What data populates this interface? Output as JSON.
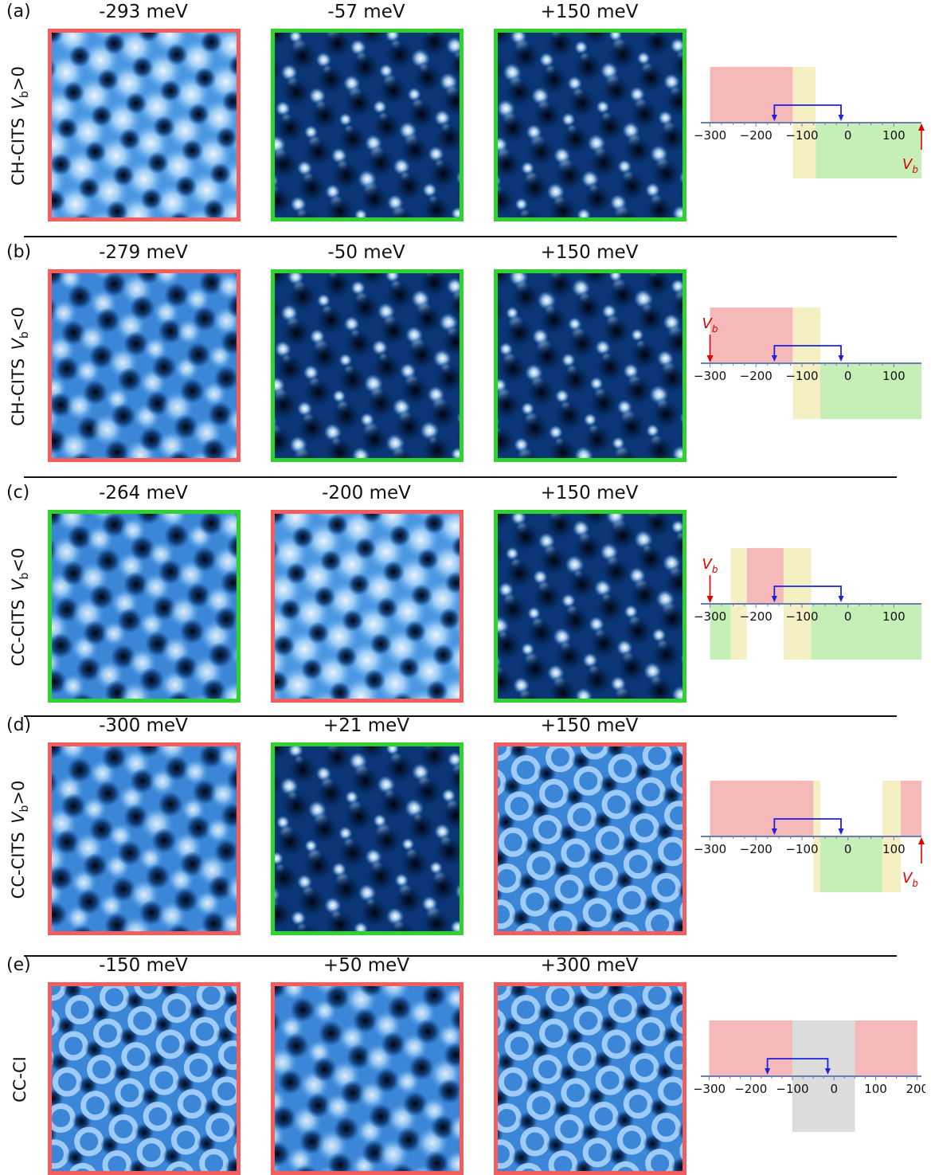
{
  "colors": {
    "red_border": "#f45d5d",
    "green_border": "#2fd22f",
    "red_region": "#f5b9b9",
    "yellow_region": "#f4f0c4",
    "green_region": "#c6efb8",
    "gray_region": "#dcdcdc",
    "arrow_blue": "#1a22e0",
    "vb_red": "#e00000",
    "axis": "#6a7fb0"
  },
  "panels": [
    {
      "letter": "(a)",
      "label_main": "CH-CITS",
      "label_vb": "V",
      "label_sub": "b",
      "label_sign": ">0",
      "images": [
        {
          "title": "-293 meV",
          "frame": "red",
          "pattern": "triangles"
        },
        {
          "title": "-57 meV",
          "frame": "green",
          "pattern": "dots"
        },
        {
          "title": "+150 meV",
          "frame": "green",
          "pattern": "dots"
        }
      ],
      "diagram": {
        "ticks": [
          "−300",
          "−200",
          "−100",
          "0",
          "100"
        ],
        "tick_values": [
          -300,
          -200,
          -100,
          0,
          100
        ],
        "xmin": -320,
        "xmax": 160,
        "regions": [
          {
            "from": -300,
            "to": -120,
            "color": "red",
            "side": "up"
          },
          {
            "from": -120,
            "to": -70,
            "color": "yellow",
            "side": "up"
          },
          {
            "from": -120,
            "to": -70,
            "color": "yellow",
            "side": "down"
          },
          {
            "from": -70,
            "to": 160,
            "color": "green",
            "side": "down"
          }
        ],
        "bracket": [
          -160,
          -15
        ],
        "vb_label": "V",
        "vb_sub": "b",
        "vb_at": 160,
        "vb_dir": "up"
      }
    },
    {
      "letter": "(b)",
      "label_main": "CH-CITS",
      "label_vb": "V",
      "label_sub": "b",
      "label_sign": "<0",
      "images": [
        {
          "title": "-279 meV",
          "frame": "red",
          "pattern": "mixed"
        },
        {
          "title": "-50 meV",
          "frame": "green",
          "pattern": "dots"
        },
        {
          "title": "+150 meV",
          "frame": "green",
          "pattern": "dots"
        }
      ],
      "diagram": {
        "ticks": [
          "−300",
          "−200",
          "−100",
          "0",
          "100"
        ],
        "tick_values": [
          -300,
          -200,
          -100,
          0,
          100
        ],
        "xmin": -320,
        "xmax": 160,
        "regions": [
          {
            "from": -300,
            "to": -120,
            "color": "red",
            "side": "up"
          },
          {
            "from": -120,
            "to": -60,
            "color": "yellow",
            "side": "up"
          },
          {
            "from": -120,
            "to": -60,
            "color": "yellow",
            "side": "down"
          },
          {
            "from": -60,
            "to": 160,
            "color": "green",
            "side": "down"
          }
        ],
        "bracket": [
          -160,
          -15
        ],
        "vb_label": "V",
        "vb_sub": "b",
        "vb_at": -300,
        "vb_dir": "down"
      }
    },
    {
      "letter": "(c)",
      "label_main": "CC-CITS",
      "label_vb": "V",
      "label_sub": "b",
      "label_sign": "<0",
      "images": [
        {
          "title": "-264 meV",
          "frame": "green",
          "pattern": "mixed"
        },
        {
          "title": "-200 meV",
          "frame": "red",
          "pattern": "triangles"
        },
        {
          "title": "+150 meV",
          "frame": "green",
          "pattern": "dots"
        }
      ],
      "diagram": {
        "ticks": [
          "−300",
          "−200",
          "−100",
          "0",
          "100"
        ],
        "tick_values": [
          -300,
          -200,
          -100,
          0,
          100
        ],
        "xmin": -320,
        "xmax": 160,
        "regions": [
          {
            "from": -300,
            "to": -255,
            "color": "green",
            "side": "down"
          },
          {
            "from": -255,
            "to": -220,
            "color": "yellow",
            "side": "up"
          },
          {
            "from": -255,
            "to": -220,
            "color": "yellow",
            "side": "down"
          },
          {
            "from": -220,
            "to": -140,
            "color": "red",
            "side": "up"
          },
          {
            "from": -140,
            "to": -80,
            "color": "yellow",
            "side": "up"
          },
          {
            "from": -140,
            "to": -80,
            "color": "yellow",
            "side": "down"
          },
          {
            "from": -80,
            "to": 160,
            "color": "green",
            "side": "down"
          }
        ],
        "bracket": [
          -160,
          -15
        ],
        "vb_label": "V",
        "vb_sub": "b",
        "vb_at": -300,
        "vb_dir": "down"
      }
    },
    {
      "letter": "(d)",
      "label_main": "CC-CITS",
      "label_vb": "V",
      "label_sub": "b",
      "label_sign": ">0",
      "images": [
        {
          "title": "-300 meV",
          "frame": "red",
          "pattern": "mixed"
        },
        {
          "title": "+21 meV",
          "frame": "green",
          "pattern": "dots"
        },
        {
          "title": "+150 meV",
          "frame": "red",
          "pattern": "rings"
        }
      ],
      "diagram": {
        "ticks": [
          "−300",
          "−200",
          "−100",
          "0",
          "100"
        ],
        "tick_values": [
          -300,
          -200,
          -100,
          0,
          100
        ],
        "xmin": -320,
        "xmax": 160,
        "regions": [
          {
            "from": -300,
            "to": -75,
            "color": "red",
            "side": "up"
          },
          {
            "from": -75,
            "to": -60,
            "color": "yellow",
            "side": "up"
          },
          {
            "from": -75,
            "to": -60,
            "color": "yellow",
            "side": "down"
          },
          {
            "from": -60,
            "to": 75,
            "color": "green",
            "side": "down"
          },
          {
            "from": 75,
            "to": 115,
            "color": "yellow",
            "side": "up"
          },
          {
            "from": 75,
            "to": 115,
            "color": "yellow",
            "side": "down"
          },
          {
            "from": 115,
            "to": 160,
            "color": "red",
            "side": "up"
          }
        ],
        "bracket": [
          -160,
          -15
        ],
        "vb_label": "V",
        "vb_sub": "b",
        "vb_at": 160,
        "vb_dir": "up"
      }
    },
    {
      "letter": "(e)",
      "label_main": "CC-CI",
      "label_vb": "",
      "label_sub": "",
      "label_sign": "",
      "images": [
        {
          "title": "-150 meV",
          "frame": "red",
          "pattern": "rings"
        },
        {
          "title": "+50 meV",
          "frame": "red",
          "pattern": "mixed"
        },
        {
          "title": "+300 meV",
          "frame": "red",
          "pattern": "rings"
        }
      ],
      "diagram": {
        "ticks": [
          "−300",
          "−200",
          "−100",
          "0",
          "100",
          "200"
        ],
        "tick_values": [
          -300,
          -200,
          -100,
          0,
          100,
          200
        ],
        "xmin": -320,
        "xmax": 210,
        "regions": [
          {
            "from": -300,
            "to": -100,
            "color": "red",
            "side": "up"
          },
          {
            "from": -100,
            "to": 50,
            "color": "gray",
            "side": "up"
          },
          {
            "from": -100,
            "to": 50,
            "color": "gray",
            "side": "down"
          },
          {
            "from": 50,
            "to": 200,
            "color": "red",
            "side": "up"
          }
        ],
        "bracket": [
          -160,
          -15
        ],
        "vb_label": "",
        "vb_sub": "",
        "vb_at": null,
        "vb_dir": ""
      }
    }
  ]
}
